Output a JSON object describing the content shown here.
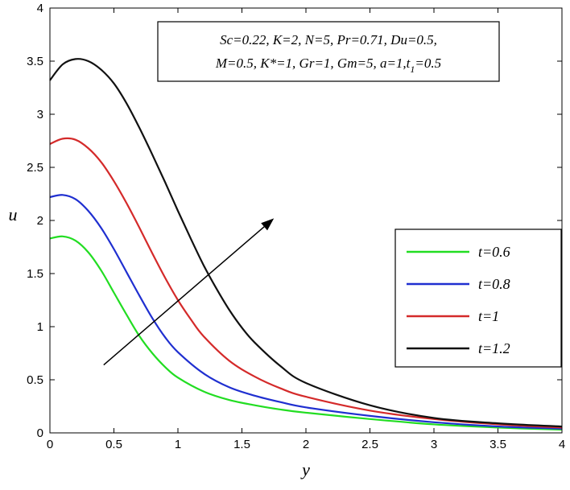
{
  "chart_data": {
    "type": "line",
    "xlabel": "y",
    "ylabel": "u",
    "xlim": [
      0,
      4
    ],
    "ylim": [
      0,
      4
    ],
    "xticks": [
      "0",
      "0.5",
      "1",
      "1.5",
      "2",
      "2.5",
      "3",
      "3.5",
      "4"
    ],
    "yticks": [
      "0",
      "0.5",
      "1",
      "1.5",
      "2",
      "2.5",
      "3",
      "3.5",
      "4"
    ],
    "grid": false,
    "legend_position": "right",
    "annotation": {
      "line1": "Sc=0.22, K=2, N=5, Pr=0.71, Du=0.5,",
      "line2_main": "M=0.5, K*=1, Gr=1, Gm=5, a=1,t",
      "line2_sub": "1",
      "line2_end": "=0.5"
    },
    "arrow": {
      "from": [
        0.42,
        0.64
      ],
      "to": [
        1.75,
        2.02
      ],
      "direction": "increasing t"
    },
    "series": [
      {
        "name": "t=0.6",
        "color": "#22dd22",
        "x": [
          0,
          0.1,
          0.2,
          0.3,
          0.4,
          0.5,
          0.6,
          0.7,
          0.8,
          0.9,
          1.0,
          1.2,
          1.4,
          1.6,
          1.8,
          2.0,
          2.5,
          3.0,
          3.5,
          4.0
        ],
        "y": [
          1.83,
          1.85,
          1.81,
          1.7,
          1.53,
          1.32,
          1.11,
          0.91,
          0.75,
          0.62,
          0.52,
          0.39,
          0.31,
          0.26,
          0.22,
          0.19,
          0.13,
          0.08,
          0.05,
          0.03
        ]
      },
      {
        "name": "t=0.8",
        "color": "#1f2fd0",
        "x": [
          0,
          0.1,
          0.2,
          0.3,
          0.4,
          0.5,
          0.6,
          0.7,
          0.8,
          0.9,
          1.0,
          1.2,
          1.4,
          1.6,
          1.8,
          2.0,
          2.5,
          3.0,
          3.5,
          4.0
        ],
        "y": [
          2.22,
          2.24,
          2.2,
          2.09,
          1.93,
          1.73,
          1.51,
          1.29,
          1.08,
          0.9,
          0.76,
          0.56,
          0.43,
          0.35,
          0.29,
          0.24,
          0.16,
          0.1,
          0.06,
          0.04
        ]
      },
      {
        "name": "t=1",
        "color": "#d42a2a",
        "x": [
          0,
          0.1,
          0.2,
          0.3,
          0.4,
          0.5,
          0.6,
          0.7,
          0.8,
          0.9,
          1.0,
          1.1,
          1.2,
          1.4,
          1.6,
          1.8,
          2.0,
          2.5,
          3.0,
          3.5,
          4.0
        ],
        "y": [
          2.72,
          2.77,
          2.76,
          2.68,
          2.55,
          2.37,
          2.16,
          1.93,
          1.69,
          1.46,
          1.25,
          1.07,
          0.91,
          0.68,
          0.53,
          0.42,
          0.34,
          0.21,
          0.13,
          0.08,
          0.05
        ]
      },
      {
        "name": "t=1.2",
        "color": "#111111",
        "x": [
          0,
          0.1,
          0.2,
          0.3,
          0.4,
          0.5,
          0.6,
          0.7,
          0.8,
          0.9,
          1.0,
          1.1,
          1.2,
          1.3,
          1.4,
          1.5,
          1.6,
          1.8,
          2.0,
          2.5,
          3.0,
          3.5,
          4.0
        ],
        "y": [
          3.32,
          3.47,
          3.52,
          3.5,
          3.42,
          3.29,
          3.1,
          2.87,
          2.62,
          2.36,
          2.09,
          1.83,
          1.58,
          1.36,
          1.16,
          0.99,
          0.85,
          0.63,
          0.47,
          0.26,
          0.14,
          0.09,
          0.06
        ]
      }
    ]
  }
}
